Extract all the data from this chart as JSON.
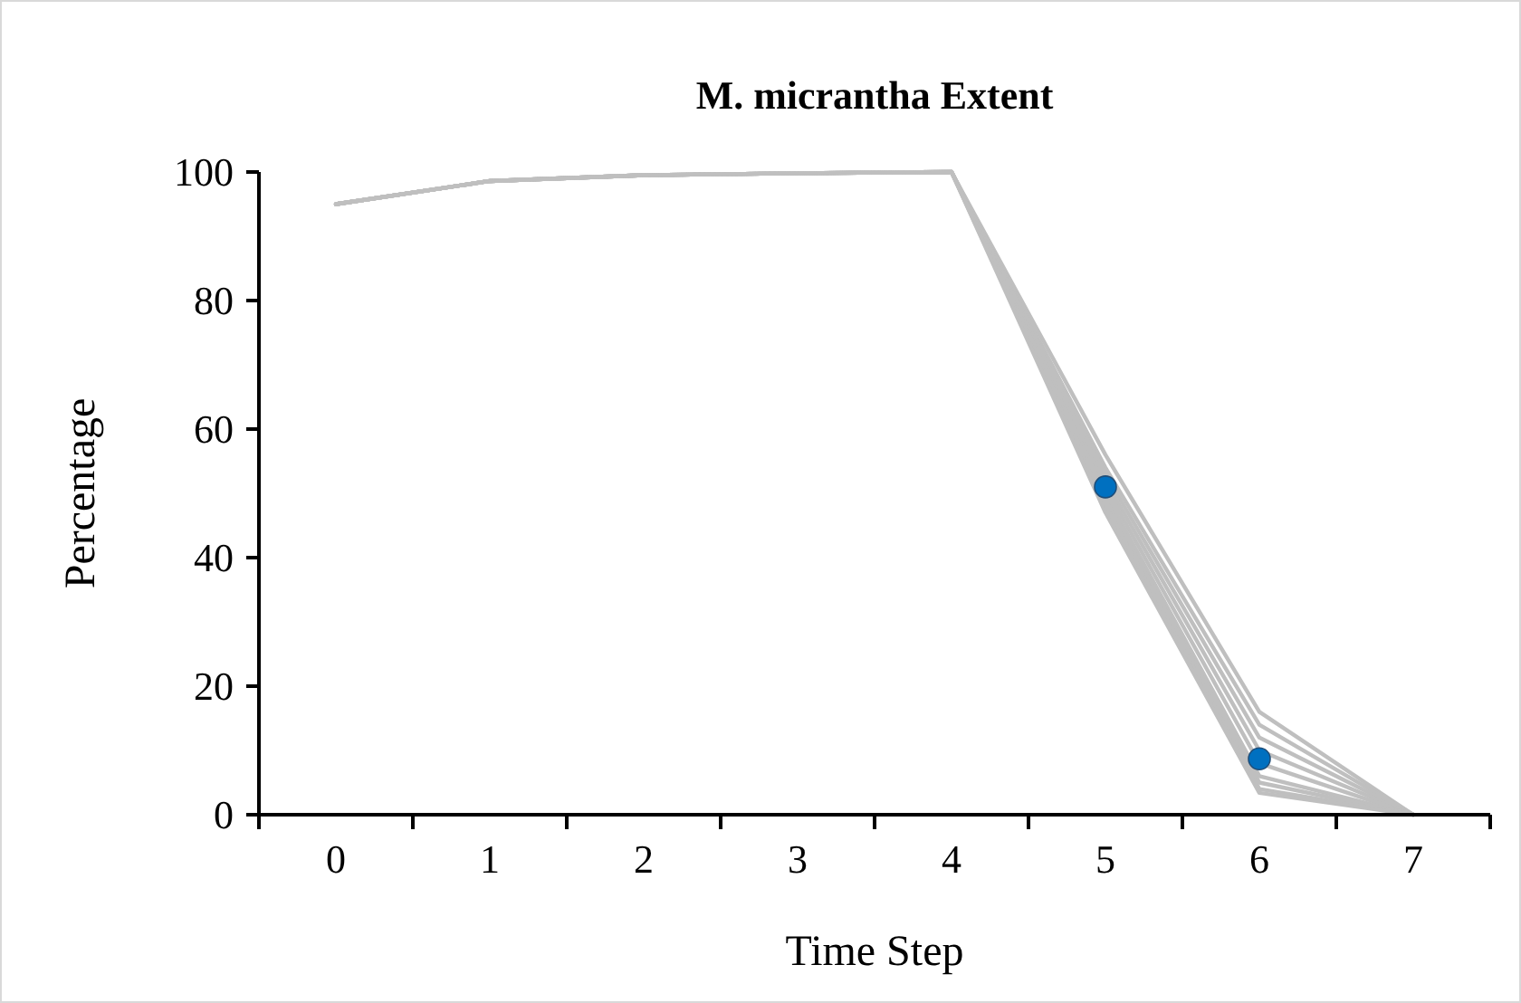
{
  "chart_data": {
    "type": "line",
    "title": "M. micrantha Extent",
    "xlabel": "Time Step",
    "ylabel": "Percentage",
    "categories": [
      "0",
      "1",
      "2",
      "3",
      "4",
      "5",
      "6",
      "7"
    ],
    "ylim": [
      0,
      100
    ],
    "yticks": [
      0,
      20,
      40,
      60,
      80,
      100
    ],
    "grid": false,
    "marker": "none",
    "line_style": "solid",
    "series": [
      {
        "color": "#bfbfbf",
        "values": [
          95,
          98.6,
          99.5,
          99.8,
          100,
          56,
          16,
          0
        ]
      },
      {
        "color": "#bfbfbf",
        "values": [
          95,
          98.6,
          99.5,
          99.8,
          100,
          54,
          14,
          0
        ]
      },
      {
        "color": "#bfbfbf",
        "values": [
          95,
          98.6,
          99.5,
          99.8,
          100,
          53,
          12,
          0
        ]
      },
      {
        "color": "#bfbfbf",
        "values": [
          95,
          98.6,
          99.5,
          99.8,
          100,
          52,
          10,
          0
        ]
      },
      {
        "color": "#bfbfbf",
        "values": [
          95,
          98.6,
          99.5,
          99.8,
          100,
          51,
          8,
          0
        ]
      },
      {
        "color": "#bfbfbf",
        "values": [
          95,
          98.6,
          99.5,
          99.8,
          100,
          50,
          6,
          0
        ]
      },
      {
        "color": "#bfbfbf",
        "values": [
          95,
          98.6,
          99.5,
          99.8,
          100,
          49,
          5,
          0
        ]
      },
      {
        "color": "#bfbfbf",
        "values": [
          95,
          98.6,
          99.5,
          99.8,
          100,
          48,
          4,
          0
        ]
      },
      {
        "color": "#bfbfbf",
        "values": [
          95,
          98.6,
          99.5,
          99.8,
          100,
          47,
          3.4,
          0
        ]
      },
      {
        "type": "scatter",
        "marker": "circle",
        "color": "#0070c0",
        "x": [
          "5",
          "6"
        ],
        "values": [
          51,
          8.7
        ]
      }
    ]
  }
}
